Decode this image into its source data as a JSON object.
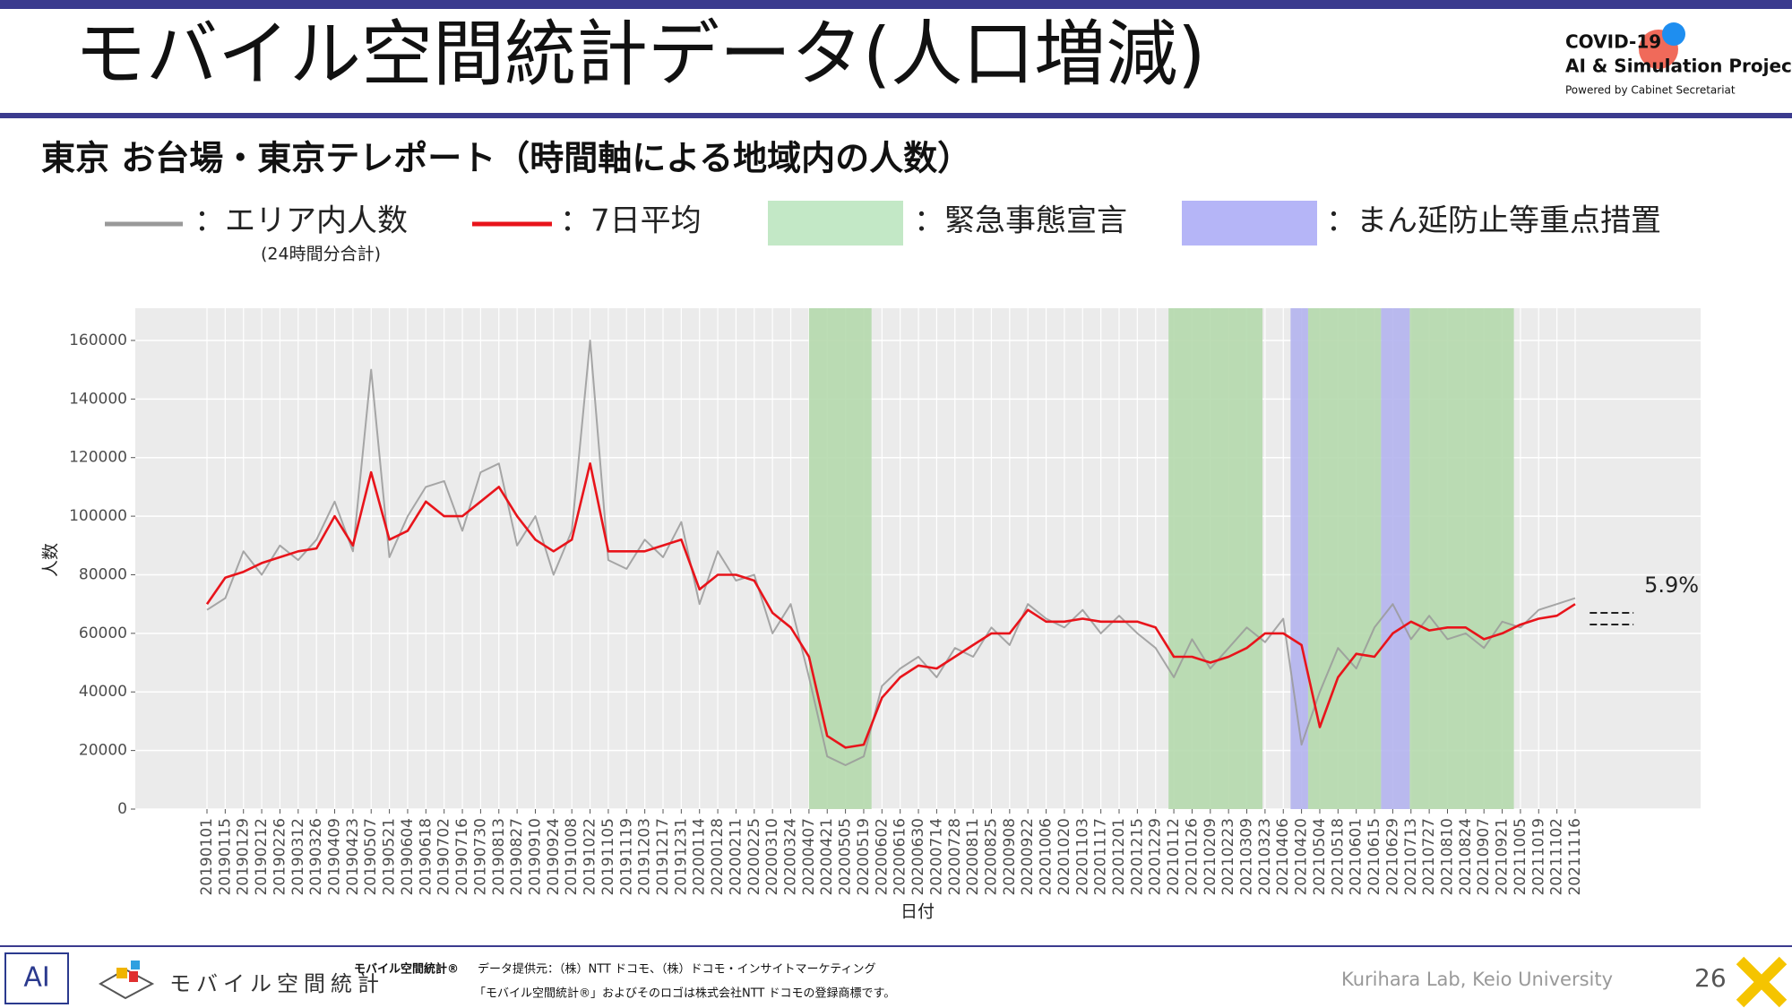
{
  "header": {
    "title": "モバイル空間統計データ(人口増減)",
    "logo": [
      "COVID-19",
      "AI & Simulation Project",
      "Powered by Cabinet Secretariat"
    ]
  },
  "chart_data": {
    "type": "line",
    "title": "東京 お台場・東京テレポート（時間軸による地域内の人数）",
    "x_label": "日付",
    "y_label": "人数",
    "categories": [
      "20190101",
      "20190115",
      "20190129",
      "20190212",
      "20190226",
      "20190312",
      "20190326",
      "20190409",
      "20190423",
      "20190507",
      "20190521",
      "20190604",
      "20190618",
      "20190702",
      "20190716",
      "20190730",
      "20190813",
      "20190827",
      "20190910",
      "20190924",
      "20191008",
      "20191022",
      "20191105",
      "20191119",
      "20191203",
      "20191217",
      "20191231",
      "20200114",
      "20200128",
      "20200211",
      "20200225",
      "20200310",
      "20200324",
      "20200407",
      "20200421",
      "20200505",
      "20200519",
      "20200602",
      "20200616",
      "20200630",
      "20200714",
      "20200728",
      "20200811",
      "20200825",
      "20200908",
      "20200922",
      "20201006",
      "20201020",
      "20201103",
      "20201117",
      "20201201",
      "20201215",
      "20201229",
      "20210112",
      "20210126",
      "20210209",
      "20210223",
      "20210309",
      "20210323",
      "20210406",
      "20210420",
      "20210504",
      "20210518",
      "20210601",
      "20210615",
      "20210629",
      "20210713",
      "20210727",
      "20210810",
      "20210824",
      "20210907",
      "20210921",
      "20211005",
      "20211019",
      "20211102",
      "20211116"
    ],
    "series": [
      {
        "name": "：エリア内人数",
        "note": "(24時間分合計)",
        "color": "#999999",
        "values": [
          68000,
          72000,
          88000,
          80000,
          90000,
          85000,
          92000,
          105000,
          88000,
          150000,
          86000,
          100000,
          110000,
          112000,
          95000,
          115000,
          118000,
          90000,
          100000,
          80000,
          95000,
          160000,
          85000,
          82000,
          92000,
          86000,
          98000,
          70000,
          88000,
          78000,
          80000,
          60000,
          70000,
          45000,
          18000,
          15000,
          18000,
          42000,
          48000,
          52000,
          45000,
          55000,
          52000,
          62000,
          56000,
          70000,
          65000,
          62000,
          68000,
          60000,
          66000,
          60000,
          55000,
          45000,
          58000,
          48000,
          55000,
          62000,
          57000,
          65000,
          22000,
          40000,
          55000,
          48000,
          62000,
          70000,
          58000,
          66000,
          58000,
          60000,
          55000,
          64000,
          62000,
          68000,
          70000,
          72000
        ]
      },
      {
        "name": "：7日平均",
        "color": "#e8141b",
        "values": [
          70000,
          79000,
          81000,
          84000,
          86000,
          88000,
          89000,
          100000,
          90000,
          115000,
          92000,
          95000,
          105000,
          100000,
          100000,
          105000,
          110000,
          100000,
          92000,
          88000,
          92000,
          118000,
          88000,
          88000,
          88000,
          90000,
          92000,
          75000,
          80000,
          80000,
          78000,
          67000,
          62000,
          52000,
          25000,
          21000,
          22000,
          38000,
          45000,
          49000,
          48000,
          52000,
          56000,
          60000,
          60000,
          68000,
          64000,
          64000,
          65000,
          64000,
          64000,
          64000,
          62000,
          52000,
          52000,
          50000,
          52000,
          55000,
          60000,
          60000,
          56000,
          28000,
          45000,
          53000,
          52000,
          60000,
          64000,
          61000,
          62000,
          62000,
          58000,
          60000,
          63000,
          65000,
          66000,
          70000
        ]
      }
    ],
    "bands": [
      {
        "name": "：緊急事態宣言",
        "color": "#b5d9ad",
        "legend_color": "#c3e8c6",
        "spans": [
          [
            33,
            36.43
          ],
          [
            52.71,
            57.86
          ],
          [
            60.36,
            64.36
          ],
          [
            65.93,
            71.64
          ]
        ]
      },
      {
        "name": "：まん延防止等重点措置",
        "color": "#b4b4ee",
        "legend_color": "#b5b5f7",
        "spans": [
          [
            59.4,
            60.36
          ],
          [
            64.36,
            65.93
          ]
        ]
      }
    ],
    "ref_lines": [
      {
        "y": 67000,
        "x": [
          75.8,
          78.2
        ]
      },
      {
        "y": 63000,
        "x": [
          75.8,
          78.2
        ]
      }
    ],
    "annotation": "5.9%",
    "ylim": [
      0,
      171000
    ],
    "yticks": [
      0,
      20000,
      40000,
      60000,
      80000,
      100000,
      120000,
      140000,
      160000
    ],
    "grid": true
  },
  "footer": {
    "brand": "モバイル空間統計",
    "mark": "モバイル空間統計®",
    "source": "データ提供元：（株）NTT ドコモ、（株）ドコモ・インサイトマーケティング",
    "trademark": "「モバイル空間統計®」およびそのロゴは株式会社NTT ドコモの登録商標です。",
    "lab": "Kurihara Lab, Keio University",
    "page": "26"
  }
}
